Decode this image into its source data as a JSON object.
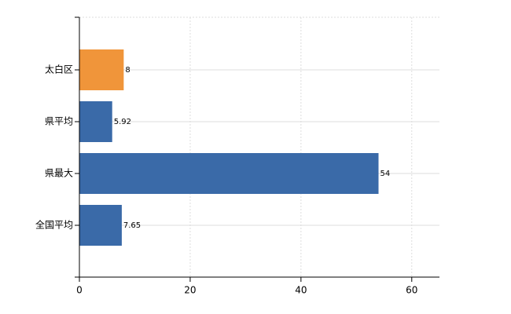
{
  "chart_data": {
    "type": "hbar",
    "categories": [
      "太白区",
      "県平均",
      "県最大",
      "全国平均"
    ],
    "values": [
      8,
      5.92,
      54,
      7.65
    ],
    "colors": [
      "#f0953a",
      "#3a6aa8",
      "#3a6aa8",
      "#3a6aa8"
    ],
    "xlim": [
      0,
      65
    ],
    "xticks": [
      0,
      20,
      40,
      60
    ],
    "grid": true
  }
}
